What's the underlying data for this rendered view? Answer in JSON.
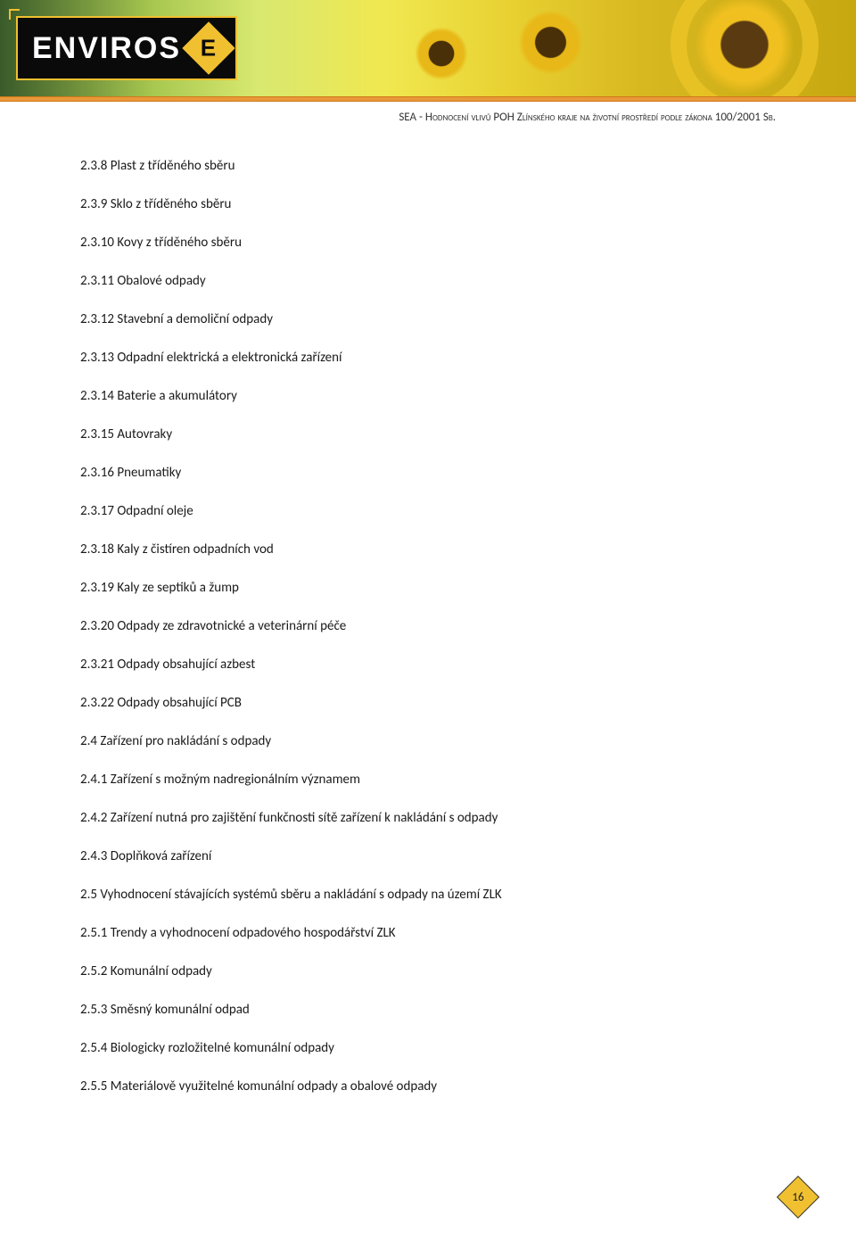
{
  "header": {
    "logo_text": "ENVIROS",
    "logo_badge": "E",
    "subheader": "SEA - Hodnocení vlivů POH Zlínského kraje na životní prostředí podle zákona 100/2001 Sb.",
    "colors": {
      "logo_bg": "#0a0a0a",
      "logo_text": "#ffffff",
      "badge_bg": "#f0c030",
      "strip": "#e89838"
    }
  },
  "toc": [
    {
      "label": "2.3.8 Plast z tříděného sběru"
    },
    {
      "label": "2.3.9 Sklo z tříděného sběru"
    },
    {
      "label": "2.3.10 Kovy z tříděného sběru"
    },
    {
      "label": "2.3.11 Obalové odpady"
    },
    {
      "label": "2.3.12 Stavební a demoliční odpady"
    },
    {
      "label": "2.3.13 Odpadní elektrická a elektronická zařízení"
    },
    {
      "label": "2.3.14 Baterie a akumulátory"
    },
    {
      "label": "2.3.15 Autovraky"
    },
    {
      "label": "2.3.16 Pneumatiky"
    },
    {
      "label": "2.3.17 Odpadní oleje"
    },
    {
      "label": "2.3.18 Kaly z čistíren odpadních vod"
    },
    {
      "label": "2.3.19 Kaly ze septiků a žump"
    },
    {
      "label": "2.3.20 Odpady ze zdravotnické a veterinární péče"
    },
    {
      "label": "2.3.21 Odpady obsahující azbest"
    },
    {
      "label": "2.3.22 Odpady obsahující PCB"
    },
    {
      "label": "2.4 Zařízení pro nakládání s odpady"
    },
    {
      "label": "2.4.1 Zařízení s možným nadregionálním významem"
    },
    {
      "label": "2.4.2 Zařízení nutná pro zajištění funkčnosti sítě zařízení k nakládání s odpady"
    },
    {
      "label": "2.4.3 Doplňková zařízení"
    },
    {
      "label": "2.5 Vyhodnocení stávajících systémů sběru a nakládání s odpady na území ZLK"
    },
    {
      "label": "2.5.1 Trendy a vyhodnocení odpadového hospodářství ZLK"
    },
    {
      "label": "2.5.2 Komunální odpady"
    },
    {
      "label": "2.5.3 Směsný komunální odpad"
    },
    {
      "label": "2.5.4 Biologicky rozložitelné komunální odpady"
    },
    {
      "label": "2.5.5 Materiálově využitelné komunální odpady a obalové odpady"
    }
  ],
  "page_number": "16",
  "styling": {
    "body_width": 960,
    "body_height": 1389,
    "content_font_size": 15,
    "content_color": "#1a1a1a",
    "item_spacing": 23.5,
    "page_diamond_color": "#f0c030"
  }
}
